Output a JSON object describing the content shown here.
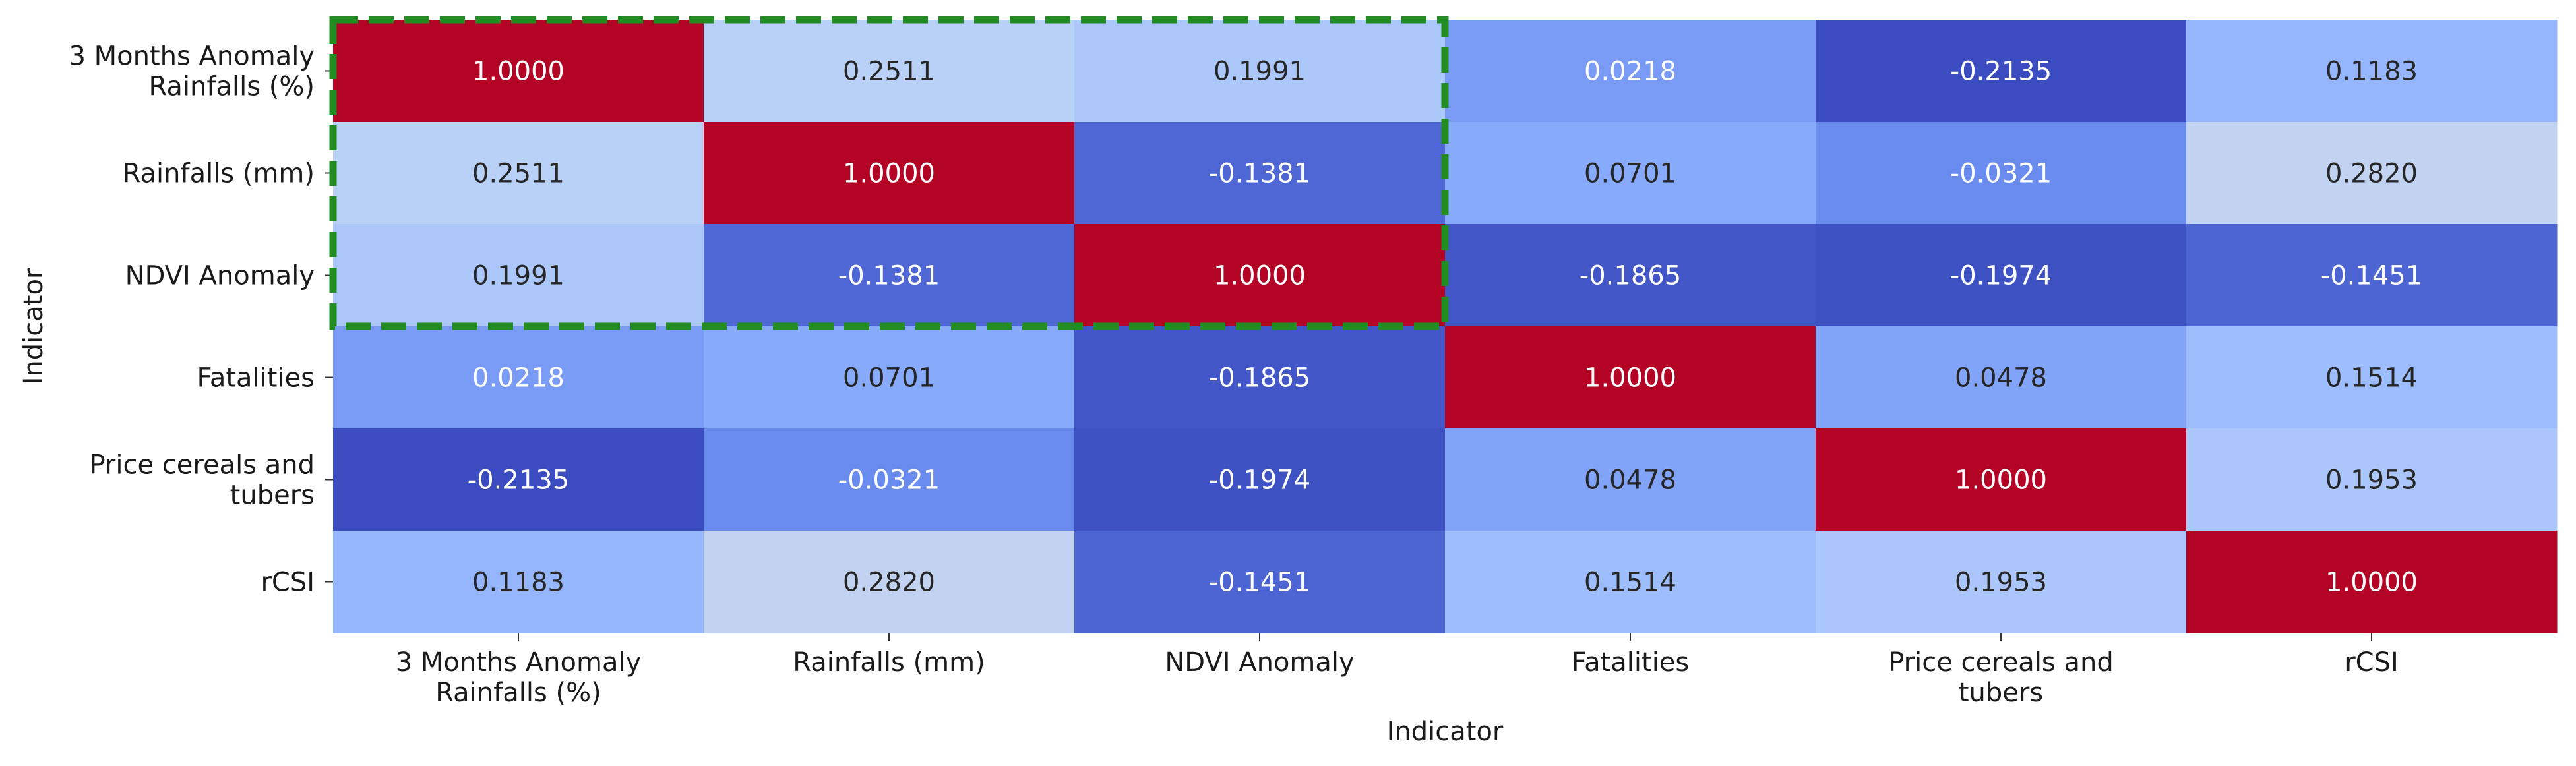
{
  "chart_data": {
    "type": "heatmap",
    "title": "",
    "xlabel": "Indicator",
    "ylabel": "Indicator",
    "rows": [
      [
        "3 Months Anomaly",
        "Rainfalls (%)"
      ],
      [
        "Rainfalls (mm)"
      ],
      [
        "NDVI Anomaly"
      ],
      [
        "Fatalities"
      ],
      [
        "Price cereals and",
        "tubers"
      ],
      [
        "rCSI"
      ]
    ],
    "columns": [
      [
        "3 Months Anomaly",
        "Rainfalls (%)"
      ],
      [
        "Rainfalls (mm)"
      ],
      [
        "NDVI Anomaly"
      ],
      [
        "Fatalities"
      ],
      [
        "Price cereals and",
        "tubers"
      ],
      [
        "rCSI"
      ]
    ],
    "values": [
      [
        1.0,
        0.2511,
        0.1991,
        0.0218,
        -0.2135,
        0.1183
      ],
      [
        0.2511,
        1.0,
        -0.1381,
        0.0701,
        -0.0321,
        0.282
      ],
      [
        0.1991,
        -0.1381,
        1.0,
        -0.1865,
        -0.1974,
        -0.1451
      ],
      [
        0.0218,
        0.0701,
        -0.1865,
        1.0,
        0.0478,
        0.1514
      ],
      [
        -0.2135,
        -0.0321,
        -0.1974,
        0.0478,
        1.0,
        0.1953
      ],
      [
        0.1183,
        0.282,
        -0.1451,
        0.1514,
        0.1953,
        1.0
      ]
    ],
    "value_format": "4 decimals",
    "colormap": "coolwarm",
    "color_range": [
      -0.2135,
      1.0
    ],
    "colorbar": false,
    "highlight": {
      "rows": [
        0,
        2
      ],
      "columns": [
        0,
        2
      ],
      "style": "dashed",
      "color": "#228b22"
    }
  }
}
